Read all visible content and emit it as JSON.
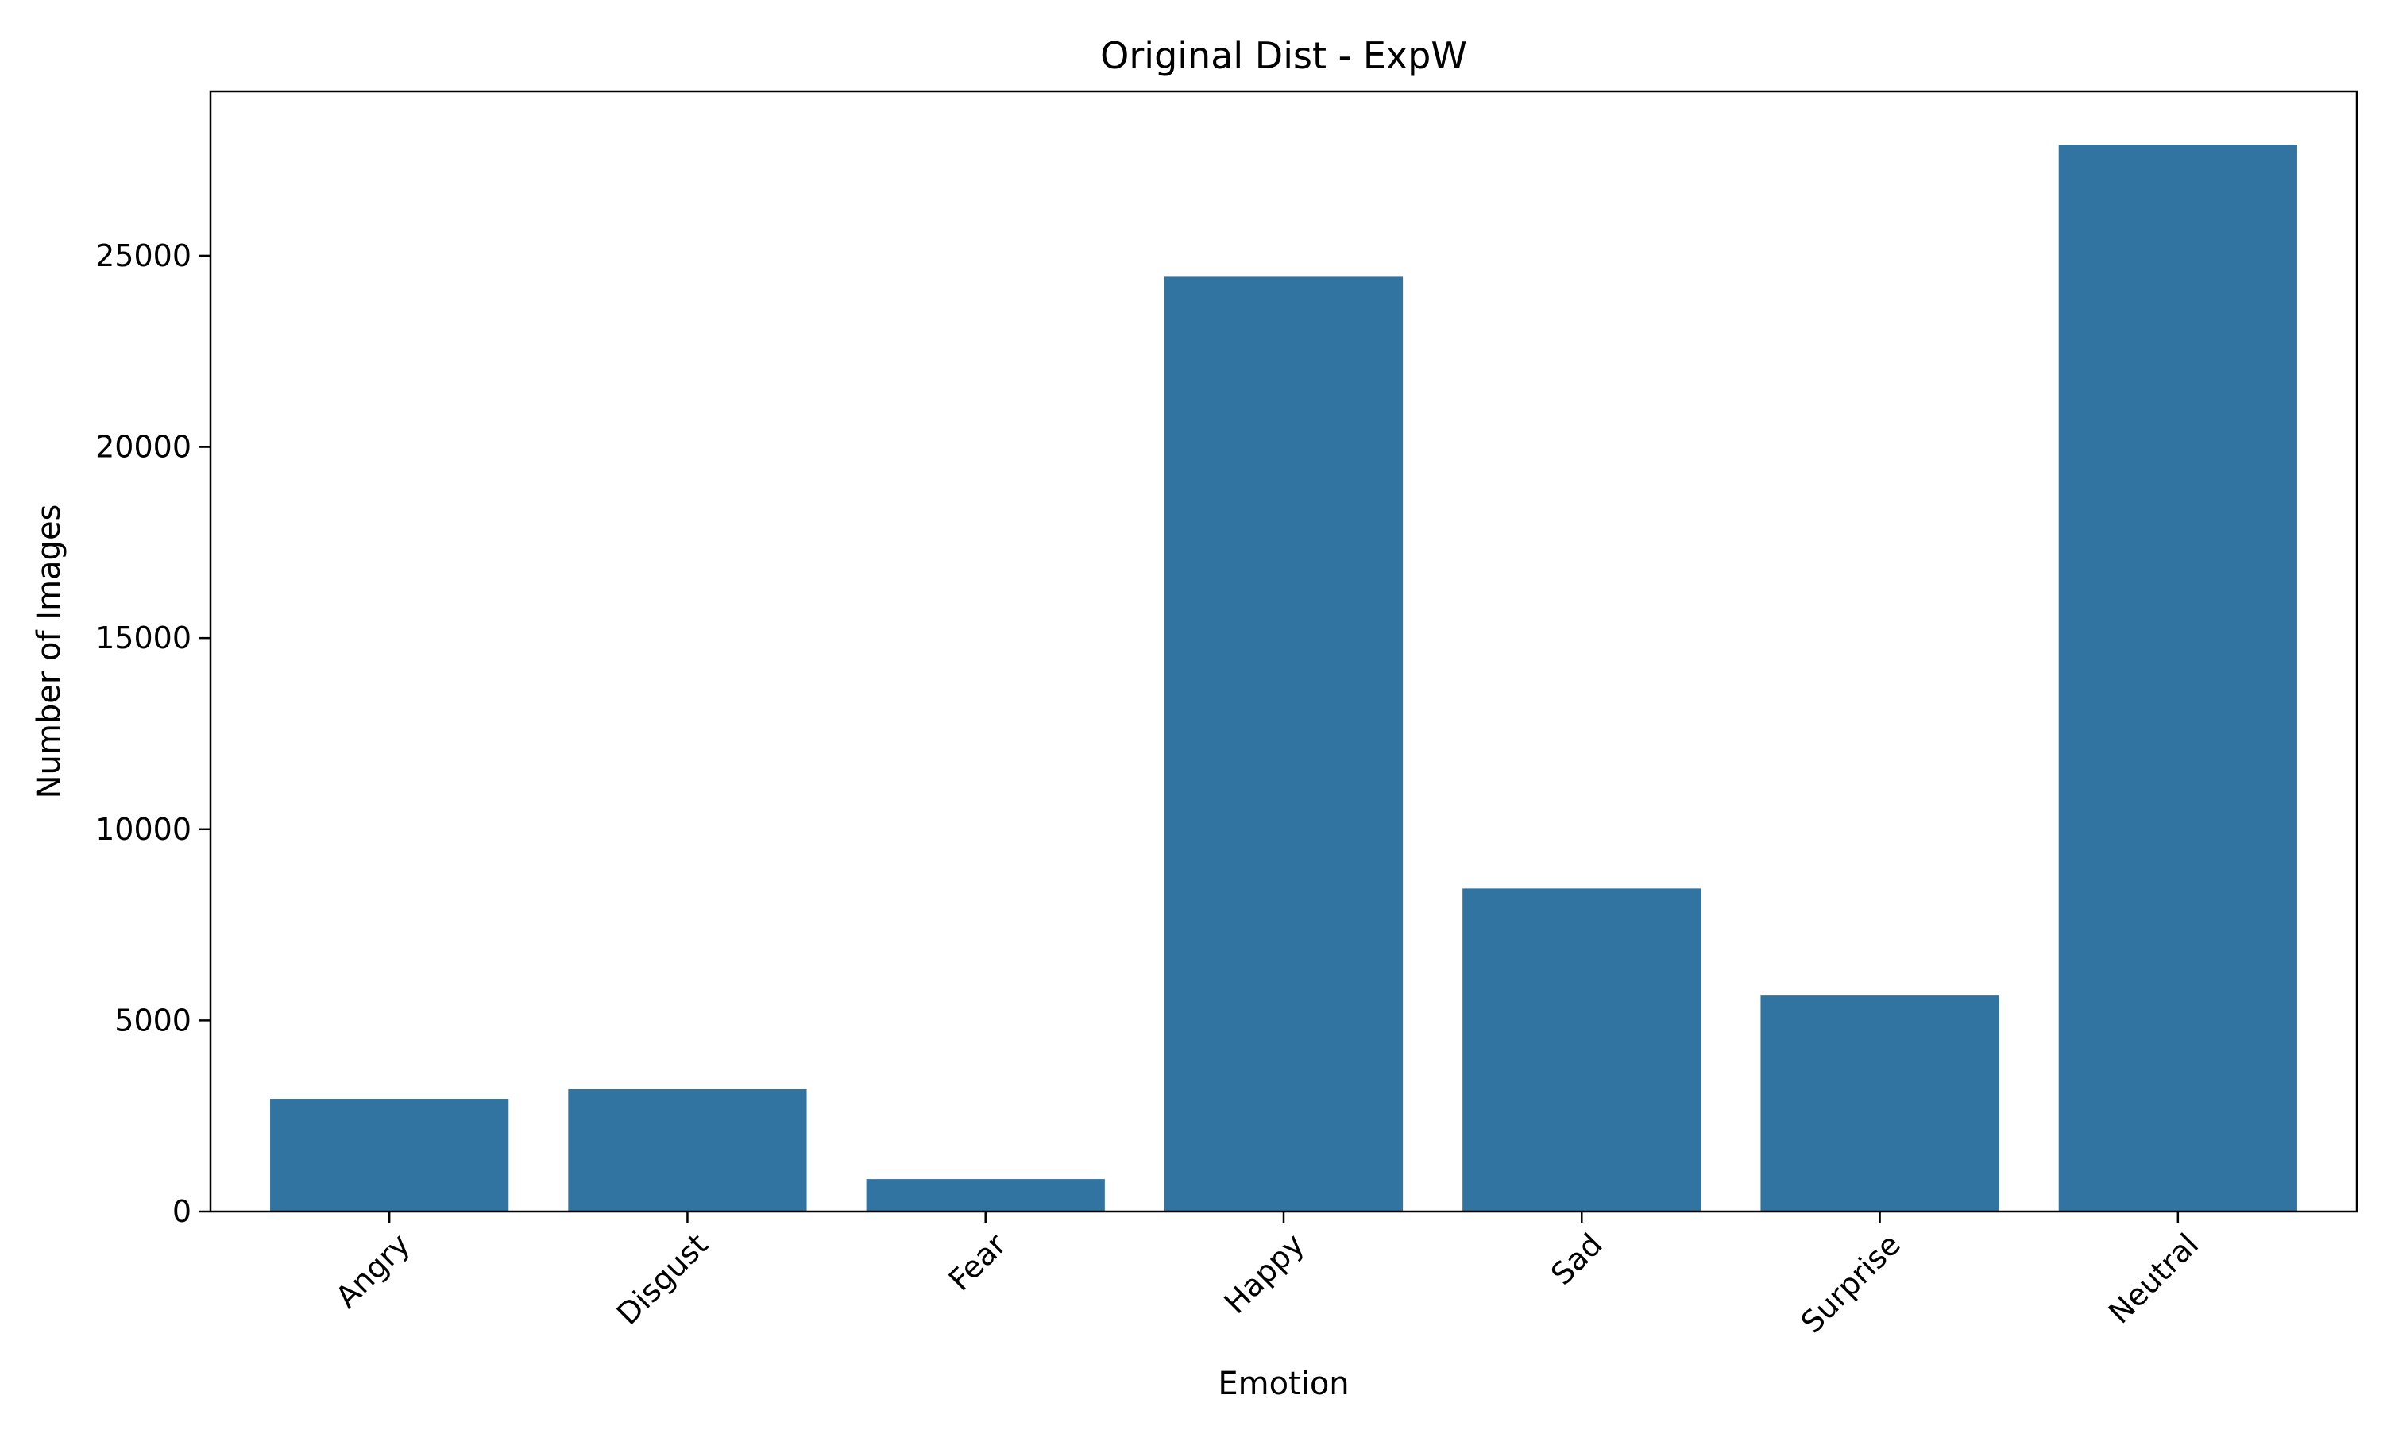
{
  "chart_data": {
    "type": "bar",
    "title": "Original Dist - ExpW",
    "xlabel": "Emotion",
    "ylabel": "Number of Images",
    "categories": [
      "Angry",
      "Disgust",
      "Fear",
      "Happy",
      "Sad",
      "Surprise",
      "Neutral"
    ],
    "values": [
      2950,
      3200,
      850,
      24450,
      8450,
      5650,
      27900
    ],
    "ylim": [
      0,
      29300
    ],
    "yticks": [
      0,
      5000,
      10000,
      15000,
      20000,
      25000
    ],
    "ytick_labels": [
      "0",
      "5000",
      "10000",
      "15000",
      "20000",
      "25000"
    ],
    "bar_color": "#3274a1",
    "grid": false,
    "legend": "none"
  }
}
